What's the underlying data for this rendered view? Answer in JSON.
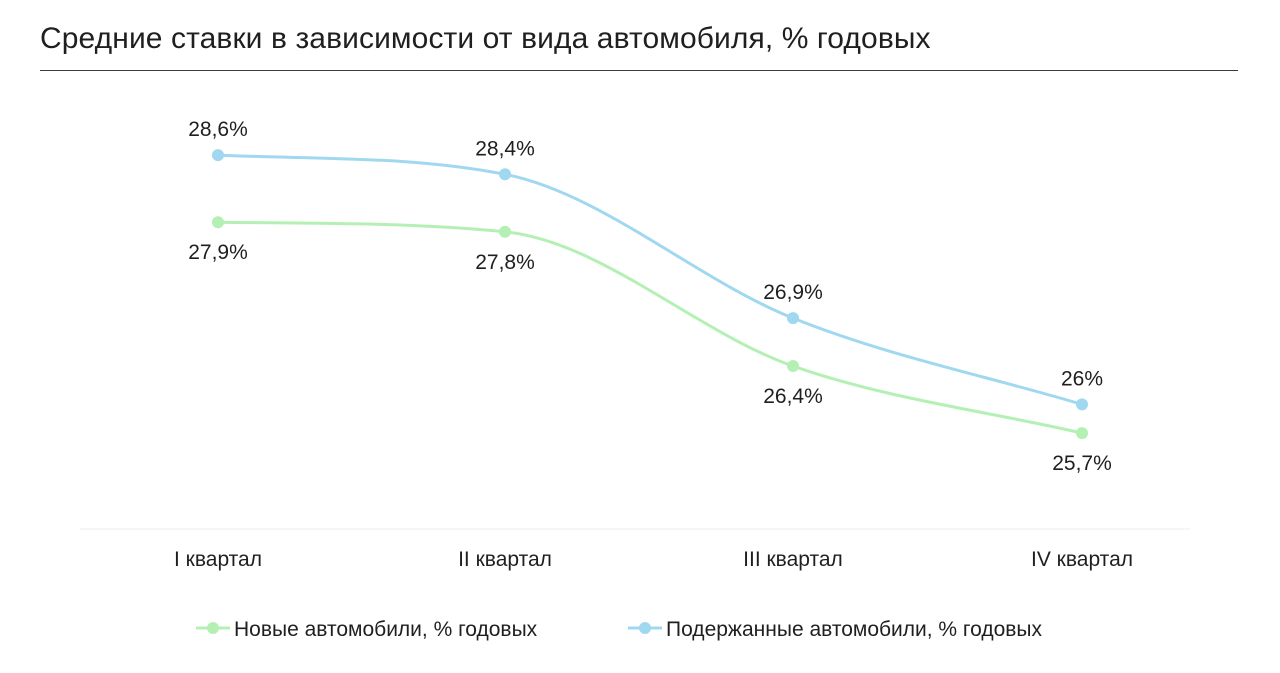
{
  "page": {
    "title": "Средние ставки в зависимости от вида автомобиля, % годовых"
  },
  "chart_data": {
    "type": "line",
    "title": "Средние ставки в зависимости от вида автомобиля, % годовых",
    "xlabel": "",
    "ylabel": "",
    "categories": [
      "I квартал",
      "II квартал",
      "III квартал",
      "IV квартал"
    ],
    "series": [
      {
        "name": "Новые автомобили, % годовых",
        "values": [
          27.9,
          27.8,
          26.4,
          25.7
        ],
        "labels": [
          "27,9%",
          "27,8%",
          "26,4%",
          "25,7%"
        ],
        "color": "#b4f0b4",
        "label_position": "below"
      },
      {
        "name": "Подержанные автомобили, % годовых",
        "values": [
          28.6,
          28.4,
          26.9,
          26.0
        ],
        "labels": [
          "28,6%",
          "28,4%",
          "26,9%",
          "26%"
        ],
        "color": "#a0d8f0",
        "label_position": "above"
      }
    ],
    "ylim": [
      24.7,
      29.3
    ],
    "grid": false,
    "smooth": true,
    "legend": "bottom"
  }
}
